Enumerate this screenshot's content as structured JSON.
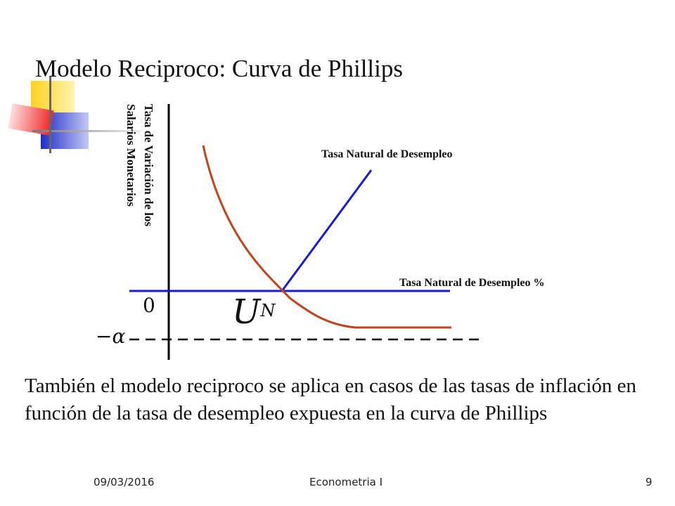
{
  "slide": {
    "title": "Modelo Reciproco: Curva de Phillips",
    "body": "También el modelo reciproco se aplica en casos de las tasas de inflación en función de la tasa de desempleo expuesta en la curva de Phillips"
  },
  "diagram": {
    "y_axis_label": "Tasa de Variación de los Salarios Monetarios",
    "vertical_line_label": "Tasa Natural de Desempleo",
    "horizontal_line_label": "Tasa Natural de Desempleo %",
    "origin_label": "0",
    "natural_rate_symbol": "U",
    "natural_rate_superscript": "N",
    "asymptote_label": "−α",
    "colors": {
      "curve": "#c0441c",
      "natural_rate_lines": "#1a1ad0",
      "axes": "#000000"
    }
  },
  "footer": {
    "date": "09/03/2016",
    "course": "Econometria I",
    "page": "9"
  }
}
